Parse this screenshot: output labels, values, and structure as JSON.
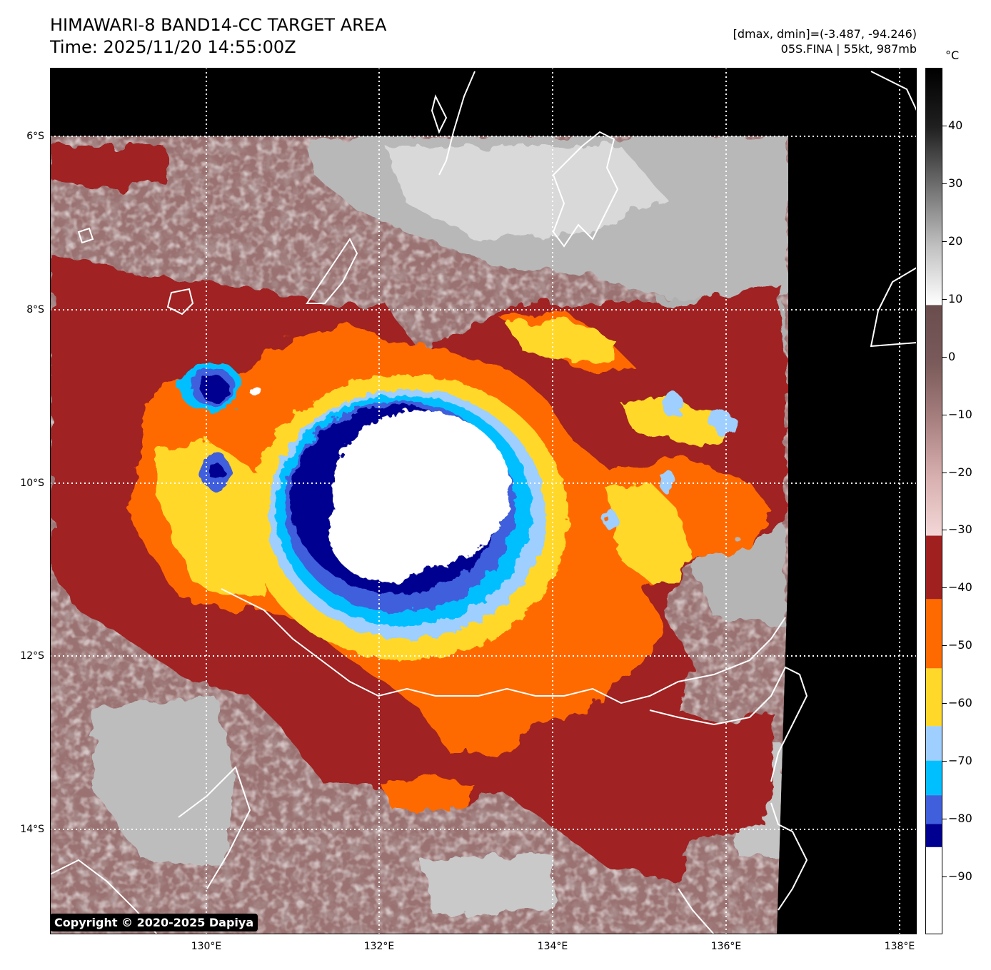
{
  "header": {
    "title_line1": "HIMAWARI-8 BAND14-CC TARGET AREA",
    "title_line2": "Time: 2025/11/20 14:55:00Z",
    "range_text": "[dmax, dmin]=(-3.487, -94.246)",
    "storm_text": "05S.FINA | 55kt, 987mb"
  },
  "colorbar": {
    "unit": "°C",
    "range": [
      -100,
      50
    ],
    "tick_labels": [
      "40",
      "30",
      "20",
      "10",
      "0",
      "−10",
      "−20",
      "−30",
      "−40",
      "−50",
      "−60",
      "−70",
      "−80",
      "−90"
    ],
    "tick_values": [
      40,
      30,
      20,
      10,
      0,
      -10,
      -20,
      -30,
      -40,
      -50,
      -60,
      -70,
      -80,
      -90
    ],
    "stops": [
      {
        "from": -100,
        "to": -85,
        "color": "#ffffff"
      },
      {
        "from": -85,
        "to": -81,
        "color": "#000090"
      },
      {
        "from": -81,
        "to": -76,
        "color": "#3f5fdc"
      },
      {
        "from": -76,
        "to": -70,
        "color": "#00bfff"
      },
      {
        "from": -70,
        "to": -64,
        "color": "#9fcfff"
      },
      {
        "from": -64,
        "to": -54,
        "color": "#ffd82a"
      },
      {
        "from": -54,
        "to": -42,
        "color": "#ff6a00"
      },
      {
        "from": -42,
        "to": -31,
        "color": "#a02020"
      },
      {
        "from": -31,
        "to": 9,
        "gradient": [
          "#f3d7d7",
          "#d8b0b0",
          "#a88080",
          "#7a5a5a",
          "#6a4d4d"
        ]
      },
      {
        "from": 9,
        "to": 50,
        "gradient": [
          "#ffffff",
          "#c0c0c0",
          "#707070",
          "#202020",
          "#000000"
        ]
      }
    ]
  },
  "map": {
    "lat_labels": [
      "6°S",
      "8°S",
      "10°S",
      "12°S",
      "14°S"
    ],
    "lon_labels": [
      "130°E",
      "132°E",
      "134°E",
      "136°E",
      "138°E"
    ],
    "lat_range": [
      "5.2°S",
      "15.2°S"
    ],
    "lon_range": [
      "128.2°E",
      "138.2°E"
    ],
    "storm": "05S.FINA",
    "center_approx": {
      "lat": "10.3°S",
      "lon": "132.5°E"
    }
  },
  "copyright": "Copyright © 2020-2025 Dapiya"
}
